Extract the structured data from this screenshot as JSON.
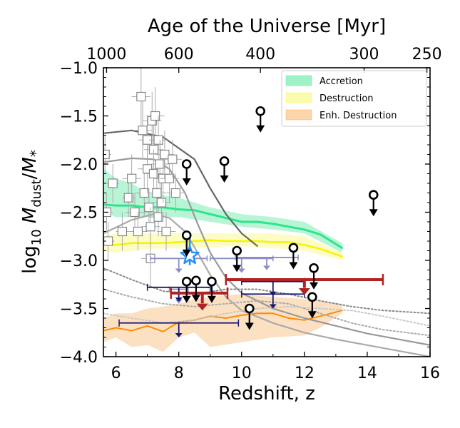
{
  "chart_data": {
    "type": "line",
    "xlabel": "Redshift, z",
    "ylabel": "log10 Mdust/M*",
    "top_axis_label": "Age of the Universe [Myr]",
    "xlim": [
      5.6,
      16
    ],
    "ylim": [
      -4.0,
      -1.0
    ],
    "x_ticks": [
      6,
      8,
      10,
      12,
      14,
      16
    ],
    "y_ticks": [
      -4.0,
      -3.5,
      -3.0,
      -2.5,
      -2.0,
      -1.5,
      -1.0
    ],
    "x_tick_labels": [
      "6",
      "8",
      "10",
      "12",
      "14",
      "16"
    ],
    "y_tick_labels": [
      "−4.0",
      "−3.5",
      "−3.0",
      "−2.5",
      "−2.0",
      "−1.5",
      "−1.0"
    ],
    "top_ticks": [
      {
        "z": 5.7,
        "label": "1000"
      },
      {
        "z": 8.0,
        "label": "600"
      },
      {
        "z": 10.6,
        "label": "400"
      },
      {
        "z": 13.9,
        "label": "300"
      },
      {
        "z": 15.9,
        "label": "250"
      }
    ],
    "grid": false,
    "legend_position": "top-right",
    "legend": [
      {
        "label": "Accretion",
        "color": "#00ff7f"
      },
      {
        "label": "Destruction",
        "color": "#ffff00"
      },
      {
        "label": "Enh. Destruction",
        "color": "#ff8c00"
      }
    ],
    "colors": {
      "accretion_line": "#2ee58c",
      "accretion_band": "#9ff2c8",
      "destruction_line": "#f5f500",
      "destruction_band": "#fbfbb0",
      "enh_destruction_line": "#ff8c00",
      "enh_destruction_band": "#fbd6ad",
      "gray_curves": "#808080",
      "dark_red": "#b22222",
      "navy": "#191970",
      "light_navy": "#8c8cc8",
      "star": "#1e90ff"
    },
    "series": [
      {
        "type": "band",
        "lower": [
          [
            5.6,
            -2.5
          ],
          [
            6,
            -2.55
          ],
          [
            7,
            -2.55
          ],
          [
            8,
            -2.55
          ],
          [
            9,
            -2.6
          ],
          [
            10,
            -2.65
          ],
          [
            11,
            -2.68
          ],
          [
            12,
            -2.72
          ],
          [
            13.2,
            -2.92
          ]
        ],
        "upper": [
          [
            5.6,
            -2.05
          ],
          [
            6,
            -2.15
          ],
          [
            6.5,
            -2.2
          ],
          [
            7,
            -2.3
          ],
          [
            8,
            -2.35
          ],
          [
            9,
            -2.45
          ],
          [
            10,
            -2.52
          ],
          [
            11,
            -2.55
          ],
          [
            12,
            -2.6
          ],
          [
            13.2,
            -2.82
          ]
        ],
        "color": "#9ff2c8"
      },
      {
        "type": "band",
        "lower": [
          [
            5.6,
            -2.9
          ],
          [
            6,
            -2.92
          ],
          [
            7,
            -2.88
          ],
          [
            8,
            -2.87
          ],
          [
            9,
            -2.86
          ],
          [
            10,
            -2.85
          ],
          [
            11,
            -2.87
          ],
          [
            12,
            -2.9
          ],
          [
            13.2,
            -3.0
          ]
        ],
        "upper": [
          [
            5.6,
            -2.75
          ],
          [
            6,
            -2.72
          ],
          [
            7,
            -2.72
          ],
          [
            8,
            -2.72
          ],
          [
            9,
            -2.72
          ],
          [
            10,
            -2.72
          ],
          [
            11,
            -2.72
          ],
          [
            12,
            -2.75
          ],
          [
            13.2,
            -2.92
          ]
        ],
        "color": "#fbfbb0"
      },
      {
        "type": "band",
        "lower": [
          [
            5.6,
            -3.85
          ],
          [
            6,
            -3.8
          ],
          [
            6.5,
            -3.9
          ],
          [
            7,
            -3.88
          ],
          [
            7.5,
            -3.95
          ],
          [
            8,
            -3.8
          ],
          [
            8.5,
            -3.75
          ],
          [
            9,
            -3.9
          ],
          [
            10,
            -3.85
          ],
          [
            11,
            -3.8
          ],
          [
            12,
            -3.78
          ],
          [
            12.5,
            -3.7
          ],
          [
            13.2,
            -3.55
          ]
        ],
        "upper": [
          [
            5.6,
            -3.6
          ],
          [
            6,
            -3.55
          ],
          [
            6.5,
            -3.55
          ],
          [
            7,
            -3.5
          ],
          [
            7.5,
            -3.48
          ],
          [
            8,
            -3.45
          ],
          [
            8.5,
            -3.4
          ],
          [
            9,
            -3.38
          ],
          [
            10,
            -3.35
          ],
          [
            11,
            -3.38
          ],
          [
            12,
            -3.4
          ],
          [
            12.5,
            -3.42
          ],
          [
            13.2,
            -3.45
          ]
        ],
        "color": "#fbd6ad"
      },
      {
        "name": "Accretion",
        "type": "line",
        "color": "#2ee58c",
        "width": 3,
        "points": [
          [
            5.6,
            -2.42
          ],
          [
            6,
            -2.43
          ],
          [
            6.5,
            -2.43
          ],
          [
            7,
            -2.45
          ],
          [
            7.5,
            -2.45
          ],
          [
            8,
            -2.47
          ],
          [
            8.5,
            -2.48
          ],
          [
            9,
            -2.52
          ],
          [
            9.5,
            -2.56
          ],
          [
            10,
            -2.6
          ],
          [
            10.5,
            -2.6
          ],
          [
            11,
            -2.62
          ],
          [
            11.5,
            -2.65
          ],
          [
            12,
            -2.68
          ],
          [
            12.5,
            -2.73
          ],
          [
            13.2,
            -2.87
          ]
        ]
      },
      {
        "name": "Destruction",
        "type": "line",
        "color": "#f5f500",
        "width": 2.5,
        "points": [
          [
            5.6,
            -2.84
          ],
          [
            6,
            -2.84
          ],
          [
            6.5,
            -2.82
          ],
          [
            7,
            -2.82
          ],
          [
            7.5,
            -2.82
          ],
          [
            8,
            -2.81
          ],
          [
            8.5,
            -2.8
          ],
          [
            9,
            -2.79
          ],
          [
            9.5,
            -2.8
          ],
          [
            10,
            -2.8
          ],
          [
            10.5,
            -2.8
          ],
          [
            11,
            -2.81
          ],
          [
            11.5,
            -2.81
          ],
          [
            12,
            -2.84
          ],
          [
            12.5,
            -2.88
          ],
          [
            13.2,
            -2.96
          ]
        ]
      },
      {
        "name": "Enh. Destruction",
        "type": "line",
        "color": "#ff8c00",
        "width": 2,
        "points": [
          [
            5.6,
            -3.73
          ],
          [
            6,
            -3.7
          ],
          [
            6.5,
            -3.73
          ],
          [
            7,
            -3.68
          ],
          [
            7.5,
            -3.74
          ],
          [
            8,
            -3.64
          ],
          [
            8.5,
            -3.62
          ],
          [
            9,
            -3.58
          ],
          [
            9.5,
            -3.6
          ],
          [
            10,
            -3.57
          ],
          [
            10.5,
            -3.55
          ],
          [
            11,
            -3.55
          ],
          [
            11.5,
            -3.6
          ],
          [
            12,
            -3.62
          ],
          [
            12.5,
            -3.58
          ],
          [
            13.2,
            -3.52
          ]
        ]
      },
      {
        "type": "line",
        "color": "#666666",
        "width": 2.2,
        "points": [
          [
            5.6,
            -1.68
          ],
          [
            6.5,
            -1.65
          ],
          [
            7.5,
            -1.72
          ],
          [
            8.5,
            -1.95
          ],
          [
            9,
            -2.25
          ],
          [
            9.5,
            -2.52
          ],
          [
            10,
            -2.72
          ],
          [
            10.5,
            -2.85
          ]
        ]
      },
      {
        "type": "line",
        "color": "#999999",
        "width": 2.2,
        "points": [
          [
            5.6,
            -1.98
          ],
          [
            6.5,
            -1.94
          ],
          [
            7.2,
            -1.95
          ],
          [
            7.7,
            -2.05
          ],
          [
            8.2,
            -2.3
          ],
          [
            8.6,
            -2.62
          ],
          [
            9,
            -2.92
          ],
          [
            9.5,
            -3.18
          ],
          [
            10,
            -3.34
          ],
          [
            11,
            -3.5
          ],
          [
            12,
            -3.6
          ],
          [
            13,
            -3.68
          ],
          [
            14,
            -3.76
          ],
          [
            15,
            -3.82
          ],
          [
            16,
            -3.88
          ]
        ]
      },
      {
        "type": "line",
        "color": "#aaaaaa",
        "width": 2.2,
        "points": [
          [
            5.6,
            -2.72
          ],
          [
            6.5,
            -2.58
          ],
          [
            7.2,
            -2.52
          ],
          [
            7.7,
            -2.56
          ],
          [
            8.2,
            -2.7
          ],
          [
            8.6,
            -2.92
          ],
          [
            9,
            -3.15
          ],
          [
            9.5,
            -3.38
          ],
          [
            10,
            -3.52
          ],
          [
            11,
            -3.65
          ],
          [
            12,
            -3.75
          ],
          [
            13,
            -3.82
          ],
          [
            14,
            -3.88
          ],
          [
            15,
            -3.94
          ],
          [
            16,
            -4.0
          ]
        ]
      },
      {
        "type": "line",
        "color": "#888888",
        "width": 2,
        "dash": "2,3",
        "points": [
          [
            5.6,
            -3.08
          ],
          [
            6.5,
            -3.2
          ],
          [
            7.5,
            -3.32
          ],
          [
            8.5,
            -3.35
          ],
          [
            9.5,
            -3.3
          ],
          [
            10.5,
            -3.3
          ],
          [
            11.5,
            -3.35
          ],
          [
            12.5,
            -3.42
          ],
          [
            13.5,
            -3.48
          ],
          [
            14.5,
            -3.52
          ],
          [
            16,
            -3.55
          ]
        ]
      },
      {
        "type": "line",
        "color": "#aaaaaa",
        "width": 2,
        "dash": "2,3",
        "points": [
          [
            5.6,
            -3.3
          ],
          [
            6.5,
            -3.38
          ],
          [
            7.5,
            -3.45
          ],
          [
            8.5,
            -3.48
          ],
          [
            9.5,
            -3.45
          ],
          [
            10.5,
            -3.42
          ],
          [
            11.5,
            -3.45
          ],
          [
            12.5,
            -3.55
          ],
          [
            13.5,
            -3.65
          ],
          [
            14.5,
            -3.72
          ],
          [
            16,
            -3.78
          ]
        ]
      },
      {
        "type": "line",
        "color": "#c8c8c8",
        "width": 2,
        "dash": "2,3",
        "points": [
          [
            5.6,
            -3.55
          ],
          [
            6.5,
            -3.6
          ],
          [
            7.5,
            -3.65
          ],
          [
            8.5,
            -3.62
          ],
          [
            9.5,
            -3.55
          ],
          [
            10.5,
            -3.5
          ],
          [
            11.5,
            -3.48
          ],
          [
            12.5,
            -3.5
          ],
          [
            13.5,
            -3.52
          ],
          [
            14.5,
            -3.58
          ],
          [
            16,
            -3.68
          ]
        ]
      }
    ],
    "squares": [
      {
        "x": 5.65,
        "y": -1.9,
        "ex": 0.2,
        "ey": 0.2
      },
      {
        "x": 5.7,
        "y": -2.5,
        "ex": 0.2,
        "ey": 0.2
      },
      {
        "x": 5.75,
        "y": -2.8,
        "ex": 0.2,
        "ey": 0.2
      },
      {
        "x": 5.9,
        "y": -2.2,
        "ex": 0.2,
        "ey": 0.2
      },
      {
        "x": 6.2,
        "y": -2.7,
        "ex": 0.2,
        "ey": 0.2
      },
      {
        "x": 6.4,
        "y": -2.35,
        "ex": 0.2,
        "ey": 0.2
      },
      {
        "x": 6.5,
        "y": -2.15,
        "ex": 0.3,
        "ey": 0.25
      },
      {
        "x": 6.6,
        "y": -2.5,
        "ex": 0.3,
        "ey": 0.2
      },
      {
        "x": 6.7,
        "y": -2.7,
        "ex": 0.3,
        "ey": 0.2
      },
      {
        "x": 6.8,
        "y": -1.3,
        "ex": 0.3,
        "ey": 0.3
      },
      {
        "x": 6.85,
        "y": -1.65,
        "ex": 0.3,
        "ey": 0.3
      },
      {
        "x": 6.9,
        "y": -2.3,
        "ex": 0.3,
        "ey": 0.25
      },
      {
        "x": 7.0,
        "y": -1.75,
        "ex": 0.3,
        "ey": 0.25
      },
      {
        "x": 7.0,
        "y": -2.05,
        "ex": 0.3,
        "ey": 0.25
      },
      {
        "x": 7.05,
        "y": -2.45,
        "ex": 0.3,
        "ey": 0.2
      },
      {
        "x": 7.1,
        "y": -2.65,
        "ex": 0.3,
        "ey": 0.2
      },
      {
        "x": 7.1,
        "y": -2.98,
        "ex": 0.3,
        "ey": 0.3
      },
      {
        "x": 7.15,
        "y": -1.55,
        "ex": 0.3,
        "ey": 0.3
      },
      {
        "x": 7.2,
        "y": -1.85,
        "ex": 0.3,
        "ey": 0.25
      },
      {
        "x": 7.2,
        "y": -2.1,
        "ex": 0.3,
        "ey": 0.25
      },
      {
        "x": 7.25,
        "y": -1.5,
        "ex": 0.3,
        "ey": 0.3
      },
      {
        "x": 7.3,
        "y": -2.3,
        "ex": 0.3,
        "ey": 0.25
      },
      {
        "x": 7.35,
        "y": -1.75,
        "ex": 0.3,
        "ey": 0.25
      },
      {
        "x": 7.35,
        "y": -2.55,
        "ex": 0.3,
        "ey": 0.2
      },
      {
        "x": 7.4,
        "y": -2.0,
        "ex": 0.3,
        "ey": 0.25
      },
      {
        "x": 7.45,
        "y": -2.4,
        "ex": 0.3,
        "ey": 0.2
      },
      {
        "x": 7.5,
        "y": -2.15,
        "ex": 0.3,
        "ey": 0.25
      },
      {
        "x": 7.55,
        "y": -1.9,
        "ex": 0.3,
        "ey": 0.25
      },
      {
        "x": 7.6,
        "y": -2.7,
        "ex": 0.3,
        "ey": 0.2
      },
      {
        "x": 7.7,
        "y": -2.15,
        "ex": 0.3,
        "ey": 0.25
      },
      {
        "x": 7.8,
        "y": -1.95,
        "ex": 0.3,
        "ey": 0.2
      },
      {
        "x": 7.9,
        "y": -2.3,
        "ex": 0.3,
        "ey": 0.2
      }
    ],
    "upper_limit_circles": [
      {
        "x": 8.25,
        "y": -2.0
      },
      {
        "x": 8.25,
        "y": -2.74
      },
      {
        "x": 8.25,
        "y": -3.22
      },
      {
        "x": 8.55,
        "y": -3.21
      },
      {
        "x": 9.05,
        "y": -3.22
      },
      {
        "x": 9.45,
        "y": -1.97
      },
      {
        "x": 9.85,
        "y": -2.9
      },
      {
        "x": 10.25,
        "y": -3.5
      },
      {
        "x": 10.6,
        "y": -1.45
      },
      {
        "x": 11.65,
        "y": -2.87
      },
      {
        "x": 12.3,
        "y": -3.08
      },
      {
        "x": 12.25,
        "y": -3.38
      },
      {
        "x": 14.2,
        "y": -2.32
      }
    ],
    "dark_red_limits": [
      {
        "x": 8.75,
        "y": -3.34,
        "xerr": [
          1.0,
          0.8
        ],
        "ymark": -3.52
      },
      {
        "x": 12.0,
        "y": -3.2,
        "xerr": [
          2.5,
          2.5
        ],
        "ymark": -3.36
      }
    ],
    "navy_limits": [
      {
        "x": 8.0,
        "y": -3.65,
        "xerr": [
          1.9,
          1.9
        ],
        "ymark": -3.8
      },
      {
        "x": 8.0,
        "y": -3.28,
        "xerr": [
          1.0,
          1.0
        ],
        "ymark": -3.43
      },
      {
        "x": 11.0,
        "y": -3.22,
        "xerr": [
          1.0,
          1.0
        ],
        "ymark": -3.37
      },
      {
        "x": 11.0,
        "y": -3.35,
        "xerr": [
          1.0,
          1.0
        ],
        "ymark": -3.5
      }
    ],
    "light_navy_limits": [
      {
        "x": 8.0,
        "y": -2.98,
        "xerr": [
          0.9,
          0.9
        ],
        "ymark": -3.13
      },
      {
        "x": 10.0,
        "y": -2.98,
        "xerr": [
          1.0,
          1.0
        ],
        "ymark": -3.13
      },
      {
        "x": 10.8,
        "y": -2.97,
        "xerr": [
          1.0,
          1.0
        ],
        "ymark": -3.1
      },
      {
        "x": 8.0,
        "y": -3.3,
        "xerr": [
          0.3,
          0.3
        ],
        "ymark": -3.45
      }
    ],
    "star": {
      "x": 8.35,
      "y": -2.95,
      "ylow": -3.05,
      "yhigh": -2.72
    }
  }
}
